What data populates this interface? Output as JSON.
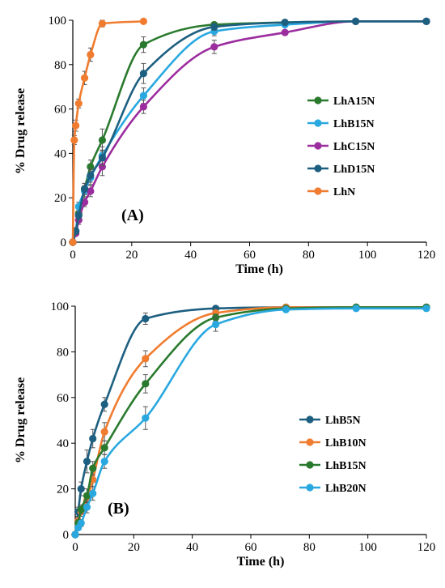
{
  "chart_data": [
    {
      "type": "line",
      "panel_label": "(A)",
      "xlabel": "Time (h)",
      "ylabel": "% Drug release",
      "xlim": [
        0,
        120
      ],
      "ylim": [
        0,
        100
      ],
      "xticks": [
        0,
        20,
        40,
        60,
        80,
        100,
        120
      ],
      "yticks": [
        0,
        20,
        40,
        60,
        80,
        100
      ],
      "grid": false,
      "legend_position": "right",
      "series": [
        {
          "name": "LhA15N",
          "color": "#2a7a2e",
          "x": [
            0,
            1,
            2,
            4,
            6,
            10,
            24,
            48,
            72,
            96,
            120
          ],
          "y": [
            0,
            5,
            13,
            24,
            34,
            46,
            89,
            98,
            99,
            99.5,
            99.5
          ],
          "err": [
            0,
            1.5,
            2,
            2.5,
            3,
            5,
            3.5,
            1,
            0.5,
            0.5,
            0.5
          ]
        },
        {
          "name": "LhB15N",
          "color": "#29a8e0",
          "x": [
            0,
            1,
            2,
            4,
            6,
            10,
            24,
            48,
            72,
            96,
            120
          ],
          "y": [
            0,
            5,
            16,
            23,
            29,
            39,
            66,
            95,
            98,
            99.5,
            99.5
          ],
          "err": [
            0,
            1.5,
            2,
            2.5,
            3,
            4,
            3.5,
            2,
            1,
            0.5,
            0.5
          ]
        },
        {
          "name": "LhC15N",
          "color": "#9b2d9e",
          "x": [
            0,
            1,
            2,
            4,
            6,
            10,
            24,
            48,
            72,
            96,
            120
          ],
          "y": [
            0,
            4,
            10,
            18,
            23,
            34,
            61,
            88,
            94.5,
            99.5,
            99.5
          ],
          "err": [
            0,
            1,
            2,
            2,
            2.5,
            4,
            3,
            3,
            1,
            0.5,
            0.5
          ]
        },
        {
          "name": "LhD15N",
          "color": "#1d5f80",
          "x": [
            0,
            1,
            2,
            4,
            6,
            10,
            24,
            48,
            72,
            96,
            120
          ],
          "y": [
            0,
            5,
            12,
            24,
            30,
            38,
            76,
            97,
            99,
            99.5,
            99.5
          ],
          "err": [
            0,
            1.5,
            2,
            2.5,
            3,
            3.5,
            4.5,
            1.5,
            0.5,
            0.5,
            0.5
          ]
        },
        {
          "name": "LhN",
          "color": "#f07c30",
          "x": [
            0,
            0.5,
            1,
            2,
            4,
            6,
            10,
            24
          ],
          "y": [
            0,
            46,
            52.5,
            62.5,
            74,
            84.5,
            98.5,
            99.5
          ],
          "err": [
            0,
            2,
            2.5,
            2,
            3,
            3,
            1.5,
            0.5
          ]
        }
      ]
    },
    {
      "type": "line",
      "panel_label": "(B)",
      "xlabel": "Time (h)",
      "ylabel": "% Drug release",
      "xlim": [
        0,
        120
      ],
      "ylim": [
        0,
        100
      ],
      "xticks": [
        0,
        20,
        40,
        60,
        80,
        100,
        120
      ],
      "yticks": [
        0,
        20,
        40,
        60,
        80,
        100
      ],
      "grid": false,
      "legend_position": "right",
      "series": [
        {
          "name": "LhB5N",
          "color": "#1d5f80",
          "x": [
            0,
            1,
            2,
            4,
            6,
            10,
            24,
            48,
            72,
            96,
            120
          ],
          "y": [
            0,
            10,
            20,
            32,
            42,
            57,
            94.5,
            99,
            99.5,
            99.5,
            99.5
          ],
          "err": [
            0,
            2,
            3,
            5,
            4,
            3,
            2.5,
            1,
            0.5,
            0.5,
            0.5
          ]
        },
        {
          "name": "LhB10N",
          "color": "#f07c30",
          "x": [
            0,
            1,
            2,
            4,
            6,
            10,
            24,
            48,
            72,
            96,
            120
          ],
          "y": [
            0,
            6,
            10,
            15,
            24,
            45,
            77,
            97,
            99.5,
            99.5,
            99.5
          ],
          "err": [
            0,
            1.5,
            2,
            3,
            3,
            4,
            3.5,
            1.5,
            0.5,
            0.5,
            0.5
          ]
        },
        {
          "name": "LhB15N",
          "color": "#2a7a2e",
          "x": [
            0,
            1,
            2,
            4,
            6,
            10,
            24,
            48,
            72,
            96,
            120
          ],
          "y": [
            0,
            5,
            11,
            17,
            29,
            38,
            66,
            95,
            99,
            99.5,
            99.5
          ],
          "err": [
            0,
            1.5,
            2,
            3,
            3,
            3,
            4,
            1.5,
            0.5,
            0.5,
            0.5
          ]
        },
        {
          "name": "LhB20N",
          "color": "#29a8e0",
          "x": [
            0,
            1,
            2,
            4,
            6,
            10,
            24,
            48,
            72,
            96,
            120
          ],
          "y": [
            0,
            3,
            5,
            12,
            18,
            32,
            51,
            92,
            98.5,
            99,
            99
          ],
          "err": [
            0,
            1,
            1.5,
            2.5,
            3,
            3,
            5,
            3,
            1,
            0.5,
            0.5
          ]
        }
      ]
    }
  ]
}
